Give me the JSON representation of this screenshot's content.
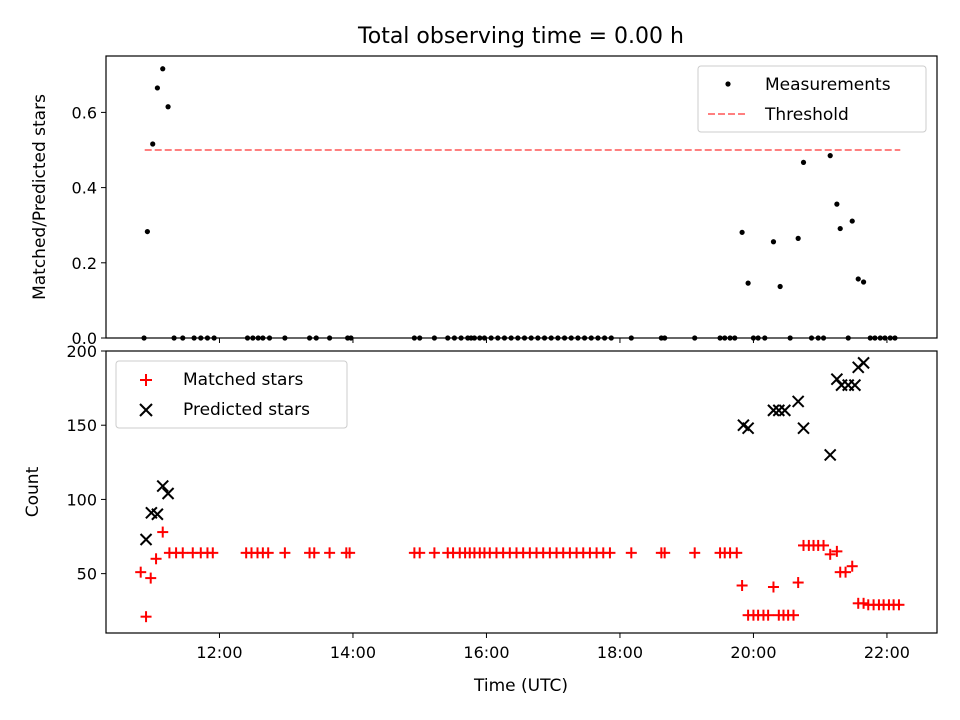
{
  "chart_data": [
    {
      "type": "scatter",
      "title": "Total observing time = 0.00 h",
      "xlabel": "",
      "ylabel": "Matched/Predicted stars",
      "xlim": [
        10.3,
        22.75
      ],
      "ylim": [
        0,
        0.75
      ],
      "yticks": [
        0.0,
        0.2,
        0.4,
        0.6
      ],
      "ytick_labels": [
        "0.0",
        "0.2",
        "0.4",
        "0.6"
      ],
      "legend_position": "upper right",
      "legend": [
        "Measurements",
        "Threshold"
      ],
      "threshold": {
        "name": "Threshold",
        "y": 0.5,
        "x": [
          10.88,
          22.2
        ],
        "color": "#ff7f7f",
        "style": "dashed"
      },
      "series": [
        {
          "name": "Measurements",
          "color": "#000000",
          "marker": "dot",
          "points": [
            [
              10.87,
              0.0
            ],
            [
              10.92,
              0.283
            ],
            [
              11.0,
              0.516
            ],
            [
              11.07,
              0.665
            ],
            [
              11.15,
              0.716
            ],
            [
              11.23,
              0.615
            ],
            [
              11.32,
              0.0
            ],
            [
              11.45,
              0.0
            ],
            [
              11.62,
              0.0
            ],
            [
              11.72,
              0.0
            ],
            [
              11.82,
              0.0
            ],
            [
              11.92,
              0.0
            ],
            [
              12.42,
              0.0
            ],
            [
              12.5,
              0.0
            ],
            [
              12.58,
              0.0
            ],
            [
              12.65,
              0.0
            ],
            [
              12.75,
              0.0
            ],
            [
              12.98,
              0.0
            ],
            [
              13.35,
              0.0
            ],
            [
              13.45,
              0.0
            ],
            [
              13.65,
              0.0
            ],
            [
              13.92,
              0.0
            ],
            [
              13.97,
              0.0
            ],
            [
              14.92,
              0.0
            ],
            [
              15.0,
              0.0
            ],
            [
              15.22,
              0.0
            ],
            [
              15.42,
              0.0
            ],
            [
              15.52,
              0.0
            ],
            [
              15.62,
              0.0
            ],
            [
              15.72,
              0.0
            ],
            [
              15.77,
              0.0
            ],
            [
              15.82,
              0.0
            ],
            [
              15.9,
              0.0
            ],
            [
              15.97,
              0.0
            ],
            [
              16.07,
              0.0
            ],
            [
              16.17,
              0.0
            ],
            [
              16.27,
              0.0
            ],
            [
              16.37,
              0.0
            ],
            [
              16.47,
              0.0
            ],
            [
              16.57,
              0.0
            ],
            [
              16.67,
              0.0
            ],
            [
              16.77,
              0.0
            ],
            [
              16.87,
              0.0
            ],
            [
              16.97,
              0.0
            ],
            [
              17.07,
              0.0
            ],
            [
              17.17,
              0.0
            ],
            [
              17.27,
              0.0
            ],
            [
              17.37,
              0.0
            ],
            [
              17.47,
              0.0
            ],
            [
              17.57,
              0.0
            ],
            [
              17.67,
              0.0
            ],
            [
              17.77,
              0.0
            ],
            [
              17.87,
              0.0
            ],
            [
              18.17,
              0.0
            ],
            [
              18.62,
              0.0
            ],
            [
              18.67,
              0.0
            ],
            [
              19.12,
              0.0
            ],
            [
              19.5,
              0.0
            ],
            [
              19.57,
              0.0
            ],
            [
              19.65,
              0.0
            ],
            [
              19.72,
              0.0
            ],
            [
              19.83,
              0.281
            ],
            [
              19.92,
              0.146
            ],
            [
              20.0,
              0.0
            ],
            [
              20.07,
              0.0
            ],
            [
              20.17,
              0.0
            ],
            [
              20.3,
              0.256
            ],
            [
              20.4,
              0.137
            ],
            [
              20.55,
              0.0
            ],
            [
              20.67,
              0.265
            ],
            [
              20.75,
              0.467
            ],
            [
              20.87,
              0.0
            ],
            [
              20.97,
              0.0
            ],
            [
              21.05,
              0.0
            ],
            [
              21.15,
              0.485
            ],
            [
              21.25,
              0.356
            ],
            [
              21.3,
              0.291
            ],
            [
              21.42,
              0.0
            ],
            [
              21.48,
              0.311
            ],
            [
              21.57,
              0.157
            ],
            [
              21.65,
              0.149
            ],
            [
              21.75,
              0.0
            ],
            [
              21.82,
              0.0
            ],
            [
              21.9,
              0.0
            ],
            [
              21.97,
              0.0
            ],
            [
              22.05,
              0.0
            ],
            [
              22.12,
              0.0
            ]
          ]
        }
      ]
    },
    {
      "type": "scatter",
      "title": "",
      "xlabel": "Time (UTC)",
      "ylabel": "Count",
      "xlim": [
        10.3,
        22.75
      ],
      "ylim": [
        10,
        200
      ],
      "xticks": [
        12,
        14,
        16,
        18,
        20,
        22
      ],
      "xtick_labels": [
        "12:00",
        "14:00",
        "16:00",
        "18:00",
        "20:00",
        "22:00"
      ],
      "yticks": [
        50,
        100,
        150,
        200
      ],
      "ytick_labels": [
        "50",
        "100",
        "150",
        "200"
      ],
      "legend_position": "upper left",
      "legend": [
        "Matched stars",
        "Predicted stars"
      ],
      "series": [
        {
          "name": "Matched stars",
          "color": "#ff0000",
          "marker": "plus",
          "points": [
            [
              10.82,
              51
            ],
            [
              10.9,
              21
            ],
            [
              10.97,
              47
            ],
            [
              11.05,
              60
            ],
            [
              11.15,
              78
            ],
            [
              11.25,
              64
            ],
            [
              11.35,
              64
            ],
            [
              11.45,
              64
            ],
            [
              11.6,
              64
            ],
            [
              11.72,
              64
            ],
            [
              11.82,
              64
            ],
            [
              11.9,
              64
            ],
            [
              12.4,
              64
            ],
            [
              12.48,
              64
            ],
            [
              12.57,
              64
            ],
            [
              12.65,
              64
            ],
            [
              12.73,
              64
            ],
            [
              12.98,
              64
            ],
            [
              13.35,
              64
            ],
            [
              13.42,
              64
            ],
            [
              13.65,
              64
            ],
            [
              13.9,
              64
            ],
            [
              13.95,
              64
            ],
            [
              14.92,
              64
            ],
            [
              15.0,
              64
            ],
            [
              15.22,
              64
            ],
            [
              15.42,
              64
            ],
            [
              15.5,
              64
            ],
            [
              15.6,
              64
            ],
            [
              15.68,
              64
            ],
            [
              15.75,
              64
            ],
            [
              15.82,
              64
            ],
            [
              15.9,
              64
            ],
            [
              15.97,
              64
            ],
            [
              16.05,
              64
            ],
            [
              16.15,
              64
            ],
            [
              16.25,
              64
            ],
            [
              16.35,
              64
            ],
            [
              16.45,
              64
            ],
            [
              16.55,
              64
            ],
            [
              16.65,
              64
            ],
            [
              16.75,
              64
            ],
            [
              16.85,
              64
            ],
            [
              16.95,
              64
            ],
            [
              17.05,
              64
            ],
            [
              17.15,
              64
            ],
            [
              17.25,
              64
            ],
            [
              17.35,
              64
            ],
            [
              17.45,
              64
            ],
            [
              17.55,
              64
            ],
            [
              17.65,
              64
            ],
            [
              17.75,
              64
            ],
            [
              17.85,
              64
            ],
            [
              18.17,
              64
            ],
            [
              18.62,
              64
            ],
            [
              18.67,
              64
            ],
            [
              19.12,
              64
            ],
            [
              19.5,
              64
            ],
            [
              19.57,
              64
            ],
            [
              19.65,
              64
            ],
            [
              19.75,
              64
            ],
            [
              19.83,
              42
            ],
            [
              19.92,
              22
            ],
            [
              20.0,
              22
            ],
            [
              20.07,
              22
            ],
            [
              20.15,
              22
            ],
            [
              20.22,
              22
            ],
            [
              20.3,
              41
            ],
            [
              20.38,
              22
            ],
            [
              20.45,
              22
            ],
            [
              20.52,
              22
            ],
            [
              20.6,
              22
            ],
            [
              20.67,
              44
            ],
            [
              20.75,
              69
            ],
            [
              20.83,
              69
            ],
            [
              20.9,
              69
            ],
            [
              20.97,
              69
            ],
            [
              21.05,
              69
            ],
            [
              21.15,
              63
            ],
            [
              21.25,
              65
            ],
            [
              21.3,
              51
            ],
            [
              21.38,
              51
            ],
            [
              21.48,
              55
            ],
            [
              21.57,
              30
            ],
            [
              21.65,
              30
            ],
            [
              21.72,
              29
            ],
            [
              21.8,
              29
            ],
            [
              21.88,
              29
            ],
            [
              21.95,
              29
            ],
            [
              22.03,
              29
            ],
            [
              22.1,
              29
            ],
            [
              22.18,
              29
            ]
          ]
        },
        {
          "name": "Predicted stars",
          "color": "#000000",
          "marker": "x",
          "points": [
            [
              10.9,
              73
            ],
            [
              10.98,
              91
            ],
            [
              11.07,
              90
            ],
            [
              11.15,
              109
            ],
            [
              11.23,
              104
            ],
            [
              19.85,
              150
            ],
            [
              19.92,
              148
            ],
            [
              20.3,
              160
            ],
            [
              20.38,
              160
            ],
            [
              20.47,
              160
            ],
            [
              20.67,
              166
            ],
            [
              20.75,
              148
            ],
            [
              21.15,
              130
            ],
            [
              21.25,
              181
            ],
            [
              21.32,
              177
            ],
            [
              21.42,
              177
            ],
            [
              21.52,
              177
            ],
            [
              21.57,
              189
            ],
            [
              21.65,
              192
            ]
          ]
        }
      ]
    }
  ]
}
